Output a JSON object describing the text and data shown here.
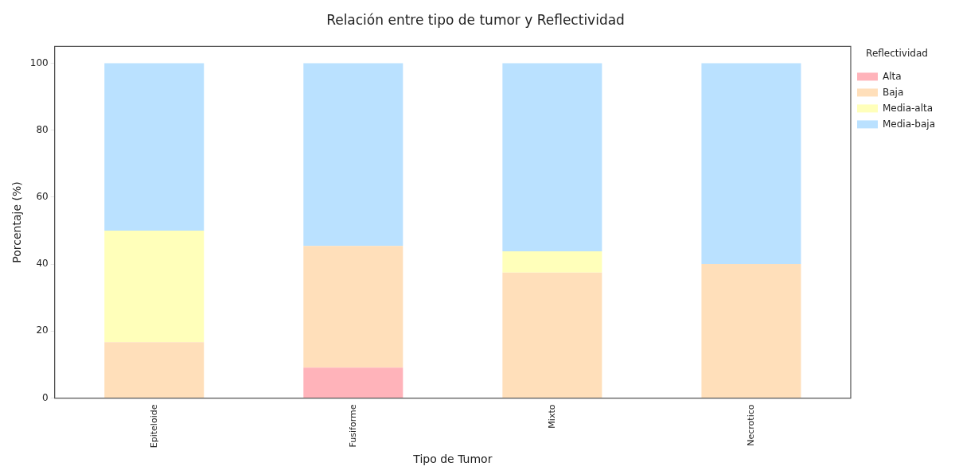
{
  "chart_data": {
    "type": "bar",
    "title": "Relación entre tipo de tumor y Reflectividad",
    "xlabel": "Tipo de Tumor",
    "ylabel": "Porcentaje (%)",
    "legend_title": "Reflectividad",
    "categories": [
      "Epiteloide",
      "Fusiforme",
      "Mixto",
      "Necrotico"
    ],
    "series": [
      {
        "name": "Alta",
        "color": "#ffb3ba",
        "values": [
          0,
          9.1,
          0,
          0
        ]
      },
      {
        "name": "Baja",
        "color": "#ffdfba",
        "values": [
          16.7,
          36.3,
          37.5,
          40
        ]
      },
      {
        "name": "Media-alta",
        "color": "#ffffba",
        "values": [
          33.3,
          0,
          6.3,
          0
        ]
      },
      {
        "name": "Media-baja",
        "color": "#bae1ff",
        "values": [
          50,
          54.6,
          56.2,
          60
        ]
      }
    ],
    "stacked": true,
    "ylim": [
      0,
      105
    ],
    "yticks": [
      0,
      20,
      40,
      60,
      80,
      100
    ],
    "grid": false,
    "legend": "top right"
  }
}
